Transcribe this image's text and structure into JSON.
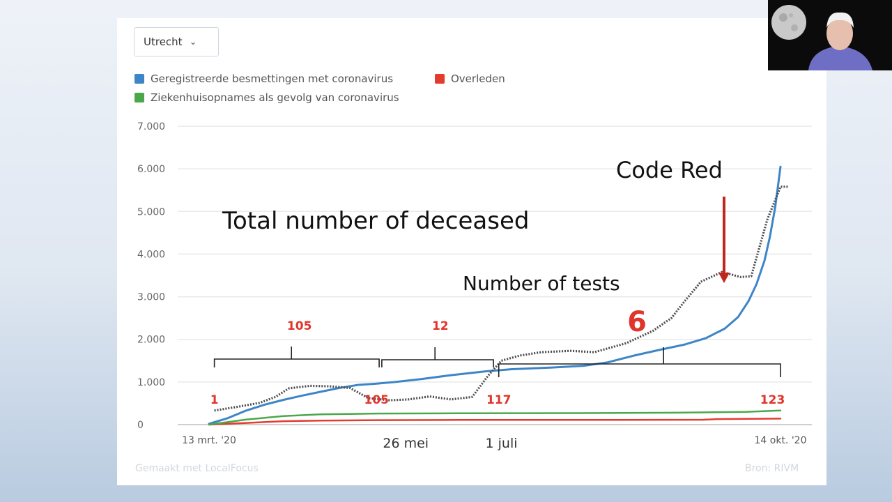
{
  "controls": {
    "region_select": "Utrecht"
  },
  "legend": [
    {
      "label": "Geregistreerde besmettingen met coronavirus",
      "color": "#3d85c6"
    },
    {
      "label": "Overleden",
      "color": "#e33b2e"
    },
    {
      "label": "Ziekenhuisopnames als gevolg van coronavirus",
      "color": "#4aa84a"
    }
  ],
  "footer": {
    "made_with": "Gemaakt met LocalFocus",
    "source": "Bron: RIVM"
  },
  "chart_data": {
    "type": "line",
    "x_tick_labels": [
      "13 mrt. '20",
      "14 okt. '20"
    ],
    "y_ticks": [
      "0",
      "1.000",
      "2.000",
      "3.000",
      "4.000",
      "5.000",
      "6.000",
      "7.000"
    ],
    "ylim": [
      0,
      7000
    ],
    "grid": true,
    "legend_position": "top-left",
    "series": [
      {
        "name": "Geregistreerde besmettingen met coronavirus",
        "color": "#3d85c6",
        "points": [
          [
            "2020-03-13",
            20
          ],
          [
            "2020-03-20",
            150
          ],
          [
            "2020-03-27",
            330
          ],
          [
            "2020-04-03",
            470
          ],
          [
            "2020-04-10",
            580
          ],
          [
            "2020-04-17",
            680
          ],
          [
            "2020-04-24",
            770
          ],
          [
            "2020-05-01",
            860
          ],
          [
            "2020-05-08",
            930
          ],
          [
            "2020-05-15",
            960
          ],
          [
            "2020-05-22",
            1000
          ],
          [
            "2020-06-01",
            1070
          ],
          [
            "2020-06-12",
            1160
          ],
          [
            "2020-06-25",
            1250
          ],
          [
            "2020-07-05",
            1300
          ],
          [
            "2020-07-20",
            1340
          ],
          [
            "2020-08-01",
            1380
          ],
          [
            "2020-08-10",
            1460
          ],
          [
            "2020-08-20",
            1620
          ],
          [
            "2020-08-30",
            1760
          ],
          [
            "2020-09-08",
            1880
          ],
          [
            "2020-09-16",
            2030
          ],
          [
            "2020-09-23",
            2250
          ],
          [
            "2020-09-28",
            2520
          ],
          [
            "2020-10-02",
            2900
          ],
          [
            "2020-10-05",
            3300
          ],
          [
            "2020-10-08",
            3850
          ],
          [
            "2020-10-10",
            4400
          ],
          [
            "2020-10-12",
            5100
          ],
          [
            "2020-10-14",
            6050
          ]
        ]
      },
      {
        "name": "Overleden",
        "color": "#e33b2e",
        "points": [
          [
            "2020-03-13",
            0
          ],
          [
            "2020-03-27",
            40
          ],
          [
            "2020-04-10",
            80
          ],
          [
            "2020-04-24",
            95
          ],
          [
            "2020-05-15",
            105
          ],
          [
            "2020-06-15",
            110
          ],
          [
            "2020-08-01",
            110
          ],
          [
            "2020-09-15",
            115
          ],
          [
            "2020-09-20",
            130
          ],
          [
            "2020-10-14",
            140
          ]
        ]
      },
      {
        "name": "Ziekenhuisopnames als gevolg van coronavirus",
        "color": "#4aa84a",
        "points": [
          [
            "2020-03-13",
            0
          ],
          [
            "2020-03-27",
            120
          ],
          [
            "2020-04-10",
            200
          ],
          [
            "2020-04-24",
            240
          ],
          [
            "2020-05-15",
            260
          ],
          [
            "2020-06-15",
            265
          ],
          [
            "2020-08-01",
            270
          ],
          [
            "2020-09-05",
            280
          ],
          [
            "2020-10-01",
            300
          ],
          [
            "2020-10-14",
            330
          ]
        ]
      }
    ],
    "overlay_series": {
      "name": "Number of tests",
      "color": "#4d4d4d",
      "points": [
        [
          "2020-03-15",
          330
        ],
        [
          "2020-03-24",
          420
        ],
        [
          "2020-04-01",
          510
        ],
        [
          "2020-04-07",
          650
        ],
        [
          "2020-04-12",
          850
        ],
        [
          "2020-04-20",
          910
        ],
        [
          "2020-04-27",
          900
        ],
        [
          "2020-05-05",
          860
        ],
        [
          "2020-05-12",
          620
        ],
        [
          "2020-05-20",
          570
        ],
        [
          "2020-05-27",
          590
        ],
        [
          "2020-06-04",
          660
        ],
        [
          "2020-06-12",
          590
        ],
        [
          "2020-06-20",
          650
        ],
        [
          "2020-06-26",
          1150
        ],
        [
          "2020-07-01",
          1500
        ],
        [
          "2020-07-08",
          1620
        ],
        [
          "2020-07-16",
          1700
        ],
        [
          "2020-07-27",
          1730
        ],
        [
          "2020-08-05",
          1700
        ],
        [
          "2020-08-17",
          1910
        ],
        [
          "2020-08-27",
          2200
        ],
        [
          "2020-09-03",
          2500
        ],
        [
          "2020-09-08",
          2900
        ],
        [
          "2020-09-14",
          3350
        ],
        [
          "2020-09-22",
          3580
        ],
        [
          "2020-09-29",
          3460
        ],
        [
          "2020-10-03",
          3480
        ],
        [
          "2020-10-09",
          4800
        ],
        [
          "2020-10-14",
          5580
        ],
        [
          "2020-10-17",
          5580
        ]
      ]
    },
    "annotations": [
      {
        "text": "Total number of deceased",
        "style": "large"
      },
      {
        "text": "Code Red",
        "style": "large"
      },
      {
        "text": "Number of tests",
        "style": "medium"
      },
      {
        "text": "6",
        "style": "red-big"
      }
    ],
    "date_labels": [
      "26 mei",
      "1 juli"
    ],
    "period_labels": [
      {
        "text": "1"
      },
      {
        "text": "105"
      },
      {
        "text": "105"
      },
      {
        "text": "12"
      },
      {
        "text": "117"
      },
      {
        "text": "123"
      }
    ]
  }
}
